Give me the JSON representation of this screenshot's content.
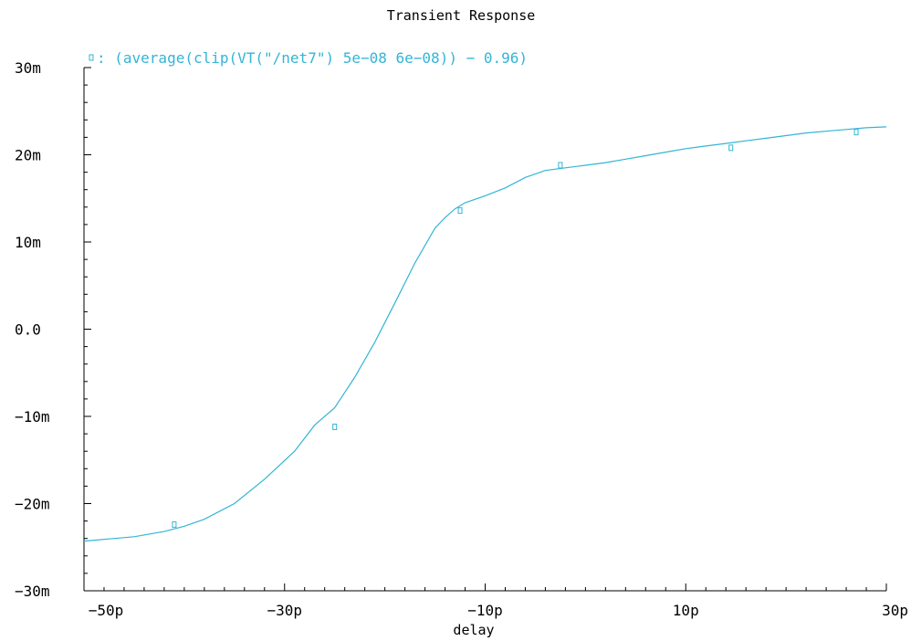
{
  "chart_data": {
    "type": "line",
    "title": "Transient Response",
    "xlabel": "delay",
    "ylabel": "",
    "xlim": [
      -50,
      30
    ],
    "ylim": [
      -30,
      30
    ],
    "x_unit": "p",
    "y_unit": "m",
    "grid": false,
    "legend_position": "top-left",
    "x_ticks": [
      {
        "value": -50,
        "label": "−50p"
      },
      {
        "value": -30,
        "label": "−30p"
      },
      {
        "value": -10,
        "label": "−10p"
      },
      {
        "value": 10,
        "label": "10p"
      },
      {
        "value": 30,
        "label": "30p"
      }
    ],
    "y_ticks": [
      {
        "value": 30,
        "label": "30m"
      },
      {
        "value": 20,
        "label": "20m"
      },
      {
        "value": 10,
        "label": "10m"
      },
      {
        "value": 0,
        "label": "0.0"
      },
      {
        "value": -10,
        "label": "−10m"
      },
      {
        "value": -20,
        "label": "−20m"
      },
      {
        "value": -30,
        "label": "−30m"
      }
    ],
    "series": [
      {
        "name": ": (average(clip(VT(\"/net7\") 5e−08 6e−08)) − 0.96)",
        "color": "#33b5d6",
        "x": [
          -50,
          -45,
          -42,
          -40,
          -38,
          -35,
          -32,
          -29,
          -27,
          -25,
          -23,
          -21,
          -19,
          -17,
          -15,
          -14,
          -13,
          -12,
          -10,
          -8,
          -6,
          -4,
          -2,
          0,
          2,
          4,
          6,
          8,
          10,
          12,
          14,
          16,
          18,
          20,
          22,
          24,
          26,
          28,
          30
        ],
        "y": [
          -24.3,
          -23.8,
          -23.2,
          -22.6,
          -21.8,
          -20,
          -17.2,
          -14,
          -11,
          -9,
          -5.5,
          -1.5,
          3,
          7.6,
          11.6,
          12.8,
          13.8,
          14.5,
          15.3,
          16.2,
          17.4,
          18.2,
          18.5,
          18.8,
          19.1,
          19.5,
          19.9,
          20.3,
          20.7,
          21,
          21.3,
          21.6,
          21.9,
          22.2,
          22.5,
          22.7,
          22.9,
          23.1,
          23.2
        ],
        "markers": [
          {
            "x": -41,
            "y": -22.4
          },
          {
            "x": -25,
            "y": -11.2
          },
          {
            "x": -12.5,
            "y": 13.6
          },
          {
            "x": -2.5,
            "y": 18.8
          },
          {
            "x": 14.5,
            "y": 20.8
          },
          {
            "x": 27,
            "y": 22.6
          }
        ]
      }
    ]
  }
}
